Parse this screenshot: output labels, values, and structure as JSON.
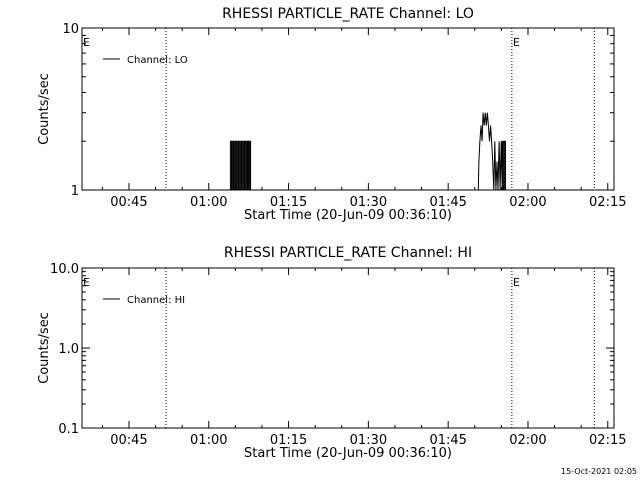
{
  "footer": {
    "timestamp": "15-Oct-2021 02:05"
  },
  "chart_data": [
    {
      "type": "line",
      "title": "RHESSI PARTICLE_RATE Channel: LO",
      "xlabel": "Start Time (20-Jun-09 00:36:10)",
      "ylabel": "Counts/sec",
      "yscale": "log",
      "ylim": [
        1,
        10
      ],
      "yticks": [
        {
          "value": 1,
          "label": "1"
        },
        {
          "value": 10,
          "label": "10"
        }
      ],
      "xlim_minutes_after_start": [
        0,
        100
      ],
      "xticks": [
        {
          "value": 8.83,
          "label": "00:45"
        },
        {
          "value": 23.83,
          "label": "01:00"
        },
        {
          "value": 38.83,
          "label": "01:15"
        },
        {
          "value": 53.83,
          "label": "01:30"
        },
        {
          "value": 68.83,
          "label": "01:45"
        },
        {
          "value": 83.83,
          "label": "02:00"
        },
        {
          "value": 98.83,
          "label": "02:15"
        }
      ],
      "legend": {
        "position": "top-left",
        "entries": [
          "Channel: LO"
        ]
      },
      "vertical_markers": [
        {
          "x": 0,
          "label": "E",
          "style": "none"
        },
        {
          "x": 15.8,
          "label": "",
          "style": "dotted"
        },
        {
          "x": 80.8,
          "label": "E",
          "style": "dotted"
        },
        {
          "x": 96.3,
          "label": "",
          "style": "dotted"
        }
      ],
      "series": [
        {
          "name": "Channel: LO",
          "x": [
            0,
            27.9,
            27.9,
            28.1,
            28.1,
            28.3,
            28.3,
            28.5,
            28.5,
            28.7,
            28.7,
            28.9,
            28.9,
            29.1,
            29.1,
            29.3,
            29.3,
            29.5,
            29.5,
            29.7,
            29.7,
            29.9,
            29.9,
            30.1,
            30.1,
            30.3,
            30.3,
            30.5,
            30.5,
            30.7,
            30.7,
            30.9,
            30.9,
            31.1,
            31.1,
            31.3,
            31.3,
            31.5,
            31.5,
            31.7,
            31.7,
            74.5,
            74.6,
            74.8,
            75.0,
            75.2,
            75.4,
            75.6,
            75.8,
            76.0,
            76.2,
            76.4,
            76.6,
            76.8,
            77.0,
            77.2,
            77.4,
            77.6,
            77.8,
            78.0,
            78.2,
            78.4,
            78.6,
            78.8,
            79.0,
            79.0,
            79.2,
            79.2,
            79.4,
            79.4,
            79.6,
            79.6,
            79.8,
            79.8,
            100
          ],
          "y": [
            1,
            1,
            2,
            2,
            1,
            1,
            2,
            2,
            1,
            1,
            2,
            2,
            1,
            1,
            2,
            2,
            1,
            1,
            2,
            2,
            1,
            1,
            2,
            2,
            1,
            1,
            2,
            2,
            1,
            1,
            2,
            2,
            1,
            1,
            2,
            2,
            1,
            1,
            2,
            2,
            1,
            1,
            1.5,
            2,
            2.5,
            2,
            3,
            2.5,
            3,
            2.5,
            3,
            2.5,
            2,
            2.5,
            2,
            1.5,
            1,
            2,
            1,
            1.5,
            1,
            2,
            1,
            2,
            1,
            2,
            2,
            1,
            1,
            2,
            2,
            1,
            1,
            1,
            1
          ]
        }
      ]
    },
    {
      "type": "line",
      "title": "RHESSI PARTICLE_RATE Channel: HI",
      "xlabel": "Start Time (20-Jun-09 00:36:10)",
      "ylabel": "Counts/sec",
      "yscale": "log",
      "ylim": [
        0.1,
        10
      ],
      "yticks": [
        {
          "value": 0.1,
          "label": "0.1"
        },
        {
          "value": 1,
          "label": "1.0"
        },
        {
          "value": 10,
          "label": "10.0"
        }
      ],
      "xlim_minutes_after_start": [
        0,
        100
      ],
      "xticks": [
        {
          "value": 8.83,
          "label": "00:45"
        },
        {
          "value": 23.83,
          "label": "01:00"
        },
        {
          "value": 38.83,
          "label": "01:15"
        },
        {
          "value": 53.83,
          "label": "01:30"
        },
        {
          "value": 68.83,
          "label": "01:45"
        },
        {
          "value": 83.83,
          "label": "02:00"
        },
        {
          "value": 98.83,
          "label": "02:15"
        }
      ],
      "legend": {
        "position": "top-left",
        "entries": [
          "Channel: HI"
        ]
      },
      "vertical_markers": [
        {
          "x": 0,
          "label": "E",
          "style": "none"
        },
        {
          "x": 15.8,
          "label": "",
          "style": "dotted"
        },
        {
          "x": 80.8,
          "label": "E",
          "style": "dotted"
        },
        {
          "x": 96.3,
          "label": "",
          "style": "dotted"
        }
      ],
      "series": [
        {
          "name": "Channel: HI",
          "x": [],
          "y": []
        }
      ]
    }
  ]
}
